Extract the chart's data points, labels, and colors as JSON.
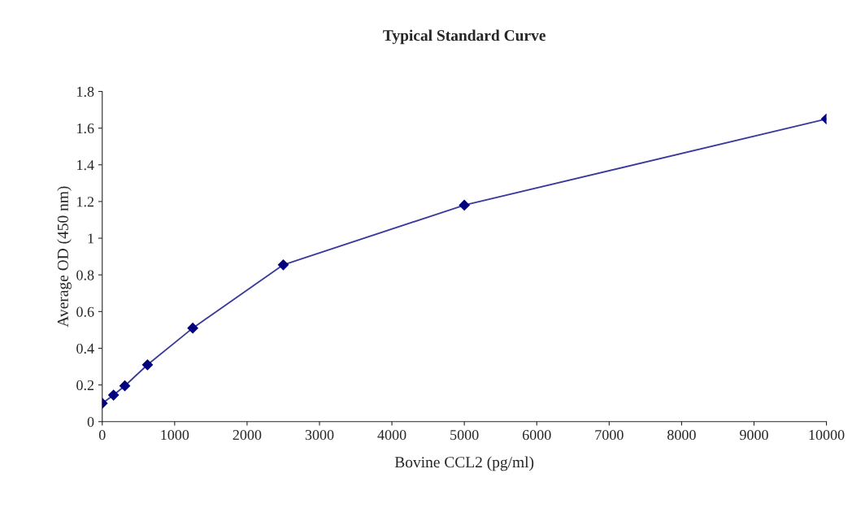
{
  "chart_data": {
    "type": "line",
    "title": "Typical Standard Curve",
    "xlabel": "Bovine CCL2 (pg/ml)",
    "ylabel": "Average OD (450 nm)",
    "x": [
      0,
      156,
      312,
      625,
      1250,
      2500,
      5000,
      10000
    ],
    "series": [
      {
        "color": "#000080",
        "values": [
          0.1,
          0.145,
          0.195,
          0.31,
          0.51,
          0.855,
          1.18,
          1.65
        ]
      }
    ],
    "xlim": [
      0,
      10000
    ],
    "xticks": [
      0,
      1000,
      2000,
      3000,
      4000,
      5000,
      6000,
      7000,
      8000,
      9000,
      10000
    ],
    "ylim": [
      0,
      1.8
    ],
    "yticks": [
      0,
      0.2,
      0.4,
      0.6,
      0.8,
      1,
      1.2,
      1.4,
      1.6,
      1.8
    ],
    "grid": false,
    "legend": false,
    "marker": "diamond",
    "line_style": "solid"
  }
}
